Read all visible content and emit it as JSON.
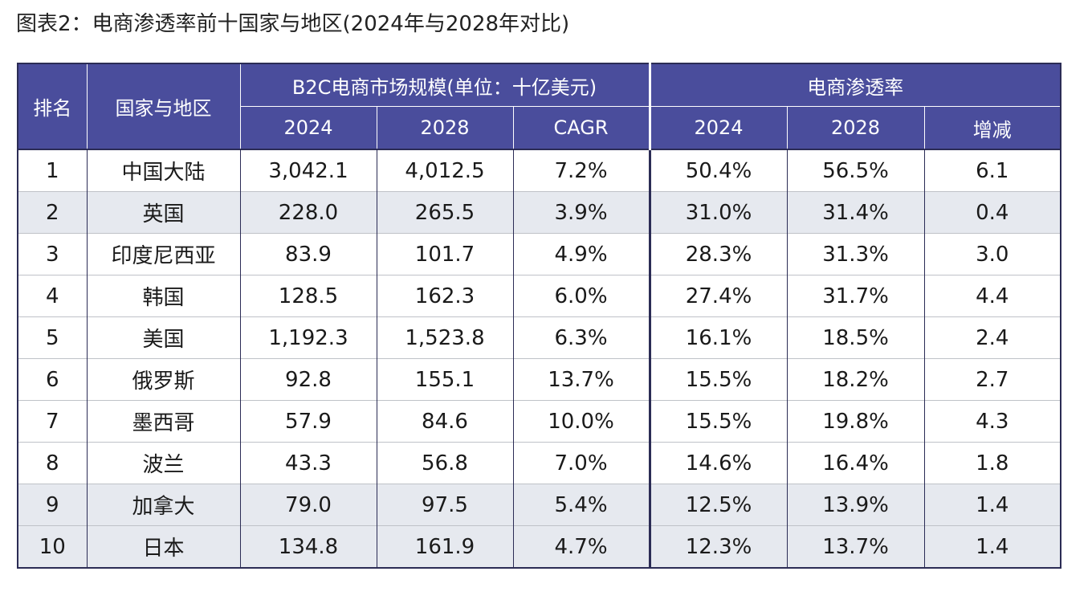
{
  "caption": "图表2：电商渗透率前十国家与地区(2024年与2028年对比)",
  "header": {
    "rank": "排名",
    "region": "国家与地区",
    "market_group": "B2C电商市场规模(单位：十亿美元)",
    "penetration_group": "电商渗透率",
    "market_2024": "2024",
    "market_2028": "2028",
    "cagr": "CAGR",
    "pen_2024": "2024",
    "pen_2028": "2028",
    "change": "增减"
  },
  "rows": [
    {
      "rank": "1",
      "region": "中国大陆",
      "m2024": "3,042.1",
      "m2028": "4,012.5",
      "cagr": "7.2%",
      "p2024": "50.4%",
      "p2028": "56.5%",
      "change": "6.1",
      "shaded": false
    },
    {
      "rank": "2",
      "region": "英国",
      "m2024": "228.0",
      "m2028": "265.5",
      "cagr": "3.9%",
      "p2024": "31.0%",
      "p2028": "31.4%",
      "change": "0.4",
      "shaded": true
    },
    {
      "rank": "3",
      "region": "印度尼西亚",
      "m2024": "83.9",
      "m2028": "101.7",
      "cagr": "4.9%",
      "p2024": "28.3%",
      "p2028": "31.3%",
      "change": "3.0",
      "shaded": false
    },
    {
      "rank": "4",
      "region": "韩国",
      "m2024": "128.5",
      "m2028": "162.3",
      "cagr": "6.0%",
      "p2024": "27.4%",
      "p2028": "31.7%",
      "change": "4.4",
      "shaded": false
    },
    {
      "rank": "5",
      "region": "美国",
      "m2024": "1,192.3",
      "m2028": "1,523.8",
      "cagr": "6.3%",
      "p2024": "16.1%",
      "p2028": "18.5%",
      "change": "2.4",
      "shaded": false
    },
    {
      "rank": "6",
      "region": "俄罗斯",
      "m2024": "92.8",
      "m2028": "155.1",
      "cagr": "13.7%",
      "p2024": "15.5%",
      "p2028": "18.2%",
      "change": "2.7",
      "shaded": false
    },
    {
      "rank": "7",
      "region": "墨西哥",
      "m2024": "57.9",
      "m2028": "84.6",
      "cagr": "10.0%",
      "p2024": "15.5%",
      "p2028": "19.8%",
      "change": "4.3",
      "shaded": false
    },
    {
      "rank": "8",
      "region": "波兰",
      "m2024": "43.3",
      "m2028": "56.8",
      "cagr": "7.0%",
      "p2024": "14.6%",
      "p2028": "16.4%",
      "change": "1.8",
      "shaded": false
    },
    {
      "rank": "9",
      "region": "加拿大",
      "m2024": "79.0",
      "m2028": "97.5",
      "cagr": "5.4%",
      "p2024": "12.5%",
      "p2028": "13.9%",
      "change": "1.4",
      "shaded": true
    },
    {
      "rank": "10",
      "region": "日本",
      "m2024": "134.8",
      "m2028": "161.9",
      "cagr": "4.7%",
      "p2024": "12.3%",
      "p2028": "13.7%",
      "change": "1.4",
      "shaded": true
    }
  ],
  "colors": {
    "header_bg": "#4a4d9c",
    "shaded_row_bg": "#e6e9ef",
    "border_dark": "#2b2c55"
  }
}
